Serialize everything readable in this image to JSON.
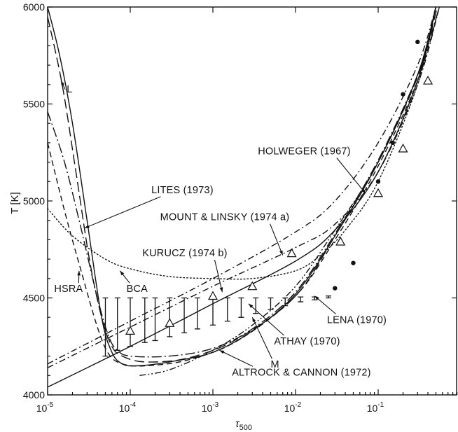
{
  "chart_data": {
    "type": "line",
    "title": "",
    "xlabel": "τ",
    "xlabel_sub": "500",
    "ylabel": "T [K]",
    "xscale": "log",
    "xlim": [
      1e-05,
      0.9
    ],
    "ylim": [
      4000,
      6000
    ],
    "yticks": [
      "4000",
      "4500",
      "5000",
      "5500",
      "6000"
    ],
    "yticks_values": [
      4000,
      4500,
      5000,
      5500,
      6000
    ],
    "xticks": [
      {
        "base": "10",
        "exp": "-5",
        "value": 1e-05
      },
      {
        "base": "10",
        "exp": "-4",
        "value": 0.0001
      },
      {
        "base": "10",
        "exp": "-3",
        "value": 0.001
      },
      {
        "base": "10",
        "exp": "-2",
        "value": 0.01
      },
      {
        "base": "10",
        "exp": "-1",
        "value": 0.1
      }
    ],
    "grid": false,
    "series": [
      {
        "name": "L",
        "style": "solid",
        "points": [
          [
            1e-05,
            6000
          ],
          [
            1.4e-05,
            5750
          ],
          [
            2e-05,
            5400
          ],
          [
            3e-05,
            4900
          ],
          [
            4.5e-05,
            4400
          ],
          [
            6e-05,
            4220
          ],
          [
            8e-05,
            4160
          ],
          [
            0.00012,
            4150
          ],
          [
            0.0003,
            4170
          ],
          [
            0.001,
            4220
          ],
          [
            0.003,
            4330
          ],
          [
            0.01,
            4520
          ],
          [
            0.03,
            4820
          ],
          [
            0.1,
            5200
          ],
          [
            0.3,
            5650
          ],
          [
            0.5,
            6000
          ]
        ]
      },
      {
        "name": "HSRA",
        "style": "dash",
        "points": [
          [
            1e-05,
            5300
          ],
          [
            1.6e-05,
            4950
          ],
          [
            2.5e-05,
            4650
          ],
          [
            4e-05,
            4350
          ],
          [
            5.5e-05,
            4210
          ],
          [
            8e-05,
            4160
          ],
          [
            0.00015,
            4150
          ],
          [
            0.0005,
            4180
          ],
          [
            0.002,
            4280
          ],
          [
            0.01,
            4510
          ],
          [
            0.03,
            4800
          ],
          [
            0.1,
            5180
          ],
          [
            0.3,
            5620
          ],
          [
            0.55,
            6000
          ]
        ]
      },
      {
        "name": "BCA",
        "style": "longdash-dot",
        "points": [
          [
            1e-05,
            5460
          ],
          [
            1.6e-05,
            5200
          ],
          [
            2.5e-05,
            4870
          ],
          [
            4e-05,
            4500
          ],
          [
            5.5e-05,
            4300
          ],
          [
            7e-05,
            4230
          ],
          [
            0.0001,
            4200
          ],
          [
            0.0003,
            4200
          ],
          [
            0.001,
            4240
          ],
          [
            0.003,
            4340
          ],
          [
            0.01,
            4530
          ],
          [
            0.03,
            4830
          ],
          [
            0.1,
            5210
          ],
          [
            0.3,
            5650
          ],
          [
            0.55,
            6000
          ]
        ]
      },
      {
        "name": "LITES (1973)",
        "style": "longdash",
        "points": [
          [
            1e-05,
            5950
          ],
          [
            1.5e-05,
            5600
          ],
          [
            2.2e-05,
            5150
          ],
          [
            3.2e-05,
            4700
          ],
          [
            4.5e-05,
            4400
          ],
          [
            6e-05,
            4250
          ],
          [
            8e-05,
            4200
          ],
          [
            0.00015,
            4170
          ],
          [
            0.0005,
            4190
          ],
          [
            0.002,
            4290
          ],
          [
            0.01,
            4510
          ],
          [
            0.03,
            4820
          ],
          [
            0.1,
            5200
          ],
          [
            0.3,
            5640
          ],
          [
            0.52,
            6000
          ]
        ]
      },
      {
        "name": "MOUNT & LINSKY (1974 a)",
        "style": "dash-dot",
        "points": [
          [
            1e-05,
            4140
          ],
          [
            0.0001,
            4350
          ],
          [
            0.001,
            4560
          ],
          [
            0.01,
            4760
          ],
          [
            0.03,
            4880
          ],
          [
            0.1,
            5150
          ],
          [
            0.3,
            5600
          ],
          [
            0.55,
            6000
          ]
        ]
      },
      {
        "name": "KURUCZ (1974 b)",
        "style": "dotted",
        "points": [
          [
            1e-05,
            4960
          ],
          [
            2e-05,
            4820
          ],
          [
            5e-05,
            4700
          ],
          [
            0.0001,
            4650
          ],
          [
            0.0003,
            4610
          ],
          [
            0.001,
            4600
          ],
          [
            0.003,
            4600
          ],
          [
            0.01,
            4640
          ],
          [
            0.02,
            4720
          ],
          [
            0.04,
            4850
          ],
          [
            0.1,
            5100
          ],
          [
            0.3,
            5600
          ],
          [
            0.5,
            6000
          ]
        ]
      },
      {
        "name": "HOLWEGER (1967)",
        "style": "dash-dot",
        "points": [
          [
            1e-05,
            4160
          ],
          [
            0.0001,
            4380
          ],
          [
            0.001,
            4600
          ],
          [
            0.01,
            4840
          ],
          [
            0.03,
            5000
          ],
          [
            0.1,
            5300
          ],
          [
            0.3,
            5700
          ],
          [
            0.5,
            6000
          ]
        ]
      },
      {
        "name": "M",
        "style": "solid",
        "points": [
          [
            1e-05,
            4040
          ],
          [
            0.0001,
            4250
          ],
          [
            0.001,
            4470
          ],
          [
            0.01,
            4690
          ],
          [
            0.03,
            4850
          ],
          [
            0.1,
            5150
          ],
          [
            0.3,
            5620
          ],
          [
            0.5,
            6000
          ]
        ]
      },
      {
        "name": "ALTROCK & CANNON (1972)",
        "style": "dash-dot-dot",
        "points": [
          [
            0.00013,
            4100
          ],
          [
            0.0003,
            4130
          ],
          [
            0.001,
            4230
          ],
          [
            0.003,
            4360
          ],
          [
            0.01,
            4560
          ],
          [
            0.03,
            4850
          ],
          [
            0.1,
            5200
          ],
          [
            0.3,
            5650
          ],
          [
            0.5,
            6000
          ]
        ]
      }
    ],
    "error_bars": {
      "name": "ATHAY (1970)",
      "points": [
        [
          5e-05,
          4200,
          4500
        ],
        [
          7e-05,
          4230,
          4500
        ],
        [
          0.0001,
          4250,
          4500
        ],
        [
          0.00015,
          4270,
          4500
        ],
        [
          0.0002,
          4280,
          4500
        ],
        [
          0.0003,
          4300,
          4500
        ],
        [
          0.00045,
          4320,
          4500
        ],
        [
          0.00065,
          4340,
          4500
        ],
        [
          0.001,
          4360,
          4500
        ],
        [
          0.0015,
          4380,
          4500
        ],
        [
          0.0022,
          4400,
          4500
        ],
        [
          0.0033,
          4420,
          4500
        ],
        [
          0.005,
          4440,
          4500
        ],
        [
          0.0075,
          4460,
          4500
        ],
        [
          0.0115,
          4480,
          4505
        ],
        [
          0.017,
          4490,
          4505
        ],
        [
          0.025,
          4500,
          4510
        ]
      ]
    },
    "triangles": [
      [
        0.0001,
        4330
      ],
      [
        0.0003,
        4370
      ],
      [
        0.001,
        4510
      ],
      [
        0.003,
        4560
      ],
      [
        0.009,
        4730
      ],
      [
        0.035,
        4790
      ],
      [
        0.1,
        5040
      ],
      [
        0.2,
        5270
      ],
      [
        0.4,
        5620
      ]
    ],
    "dots": [
      [
        0.03,
        4550
      ],
      [
        0.05,
        4680
      ],
      [
        0.1,
        5100
      ],
      [
        0.15,
        5300
      ],
      [
        0.2,
        5550
      ],
      [
        0.3,
        5820
      ]
    ],
    "annotations": [
      {
        "text": "L",
        "at": [
          1.7e-05,
          5560
        ],
        "to": [
          1.45e-05,
          5620
        ],
        "dir": "left"
      },
      {
        "text": "HOLWEGER (1967)",
        "at": [
          0.0035,
          5240
        ],
        "to": [
          0.07,
          5040
        ],
        "dir": "right"
      },
      {
        "text": "LITES (1973)",
        "at": [
          0.00018,
          5040
        ],
        "to": [
          2.8e-05,
          4860
        ],
        "dir": "left"
      },
      {
        "text": "MOUNT & LINSKY (1974 a)",
        "at": [
          0.00023,
          4900
        ],
        "to": [
          0.007,
          4720
        ],
        "dir": "right"
      },
      {
        "text": "KURUCZ (1974 b)",
        "at": [
          0.00014,
          4715
        ],
        "to": [
          0.0013,
          4530
        ],
        "dir": "right"
      },
      {
        "text": "HSRA",
        "at": [
          1.2e-05,
          4530
        ],
        "to": [
          2.4e-05,
          4640
        ],
        "dir": "right"
      },
      {
        "text": "BCA",
        "at": [
          9e-05,
          4530
        ],
        "to": [
          7.5e-05,
          4640
        ],
        "dir": "left"
      },
      {
        "text": "LENA (1970)",
        "at": [
          0.024,
          4370
        ],
        "to": [
          0.017,
          4510
        ],
        "dir": "left"
      },
      {
        "text": "ATHAY (1970)",
        "at": [
          0.0055,
          4260
        ],
        "to": [
          0.0027,
          4470
        ],
        "dir": "left"
      },
      {
        "text": "M",
        "at": [
          0.005,
          4140
        ],
        "to": [
          0.003,
          4400
        ],
        "dir": "left"
      },
      {
        "text": "ALTROCK & CANNON (1972)",
        "at": [
          0.0017,
          4100
        ],
        "to": [
          0.0012,
          4230
        ],
        "dir": "left"
      }
    ]
  }
}
